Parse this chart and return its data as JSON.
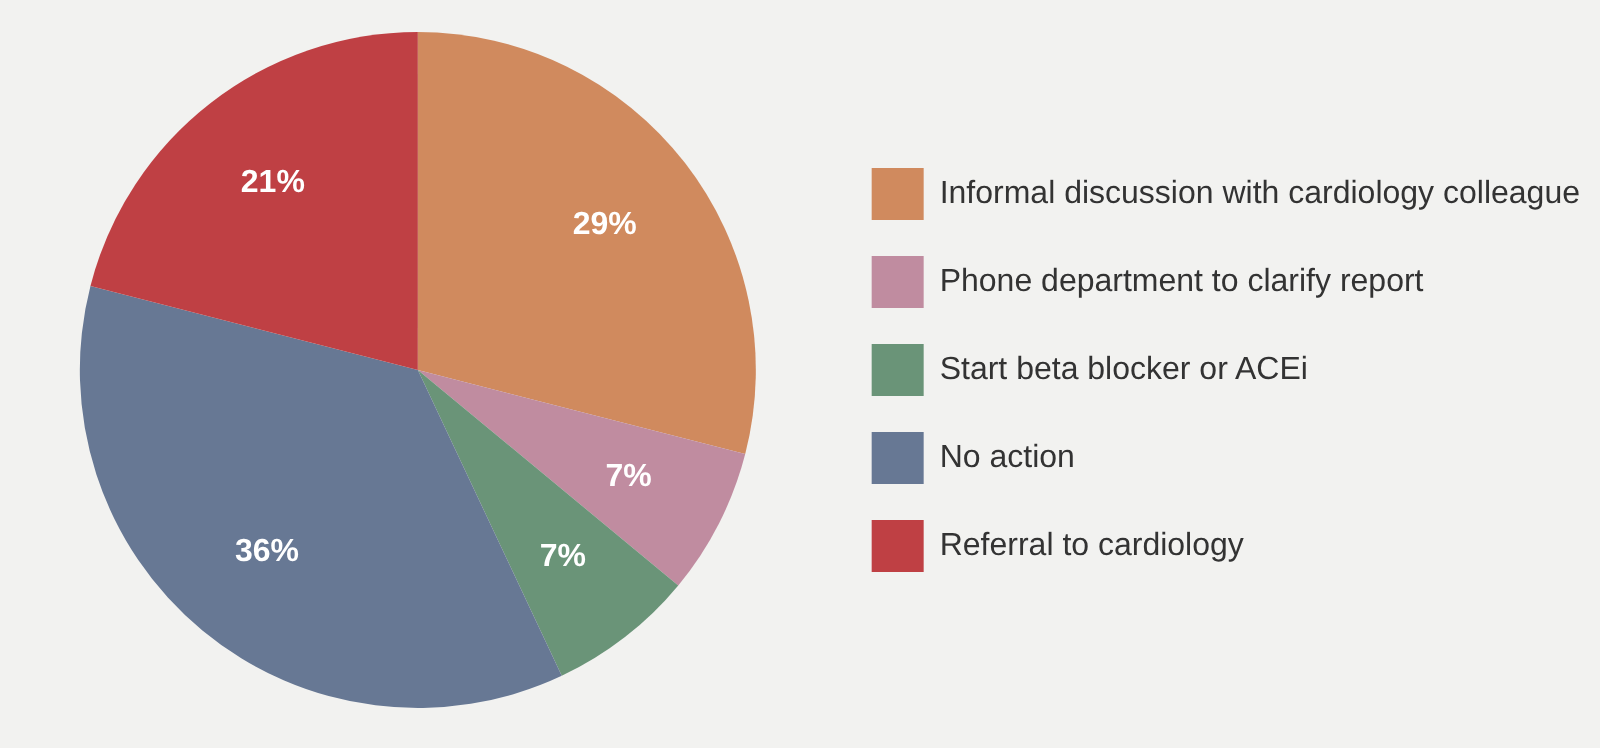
{
  "chart_data": {
    "type": "pie",
    "categories": [
      "Informal discussion with cardiology colleague",
      "Phone department to clarify report",
      "Start beta blocker or ACEi",
      "No action",
      "Referral to cardiology"
    ],
    "values": [
      29,
      7,
      7,
      36,
      21
    ],
    "colors": [
      "#d08a5e",
      "#c08ca0",
      "#6a9478",
      "#677894",
      "#bf4044"
    ],
    "value_labels": [
      "29%",
      "7%",
      "7%",
      "36%",
      "21%"
    ],
    "legend": "right"
  }
}
